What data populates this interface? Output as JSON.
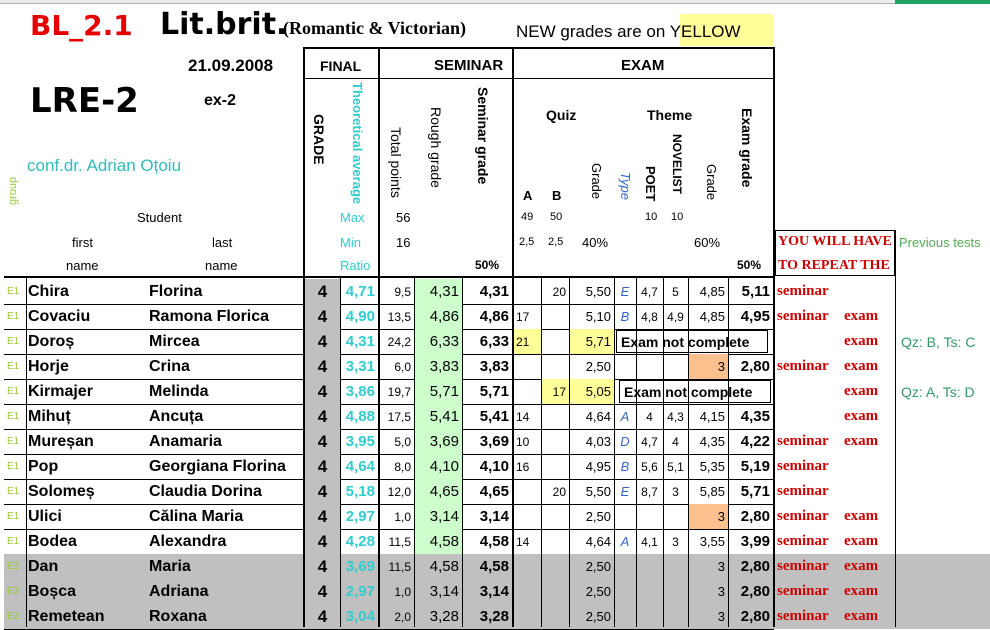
{
  "colors": {
    "teal": "#33cccc",
    "yellow": "#ffff99",
    "green": "#ccffcc",
    "orange": "#fbc08d",
    "gray": "#c0c0c0",
    "red": "#cc0000",
    "blue": "#3366cc",
    "olive": "#99cc33"
  },
  "header": {
    "code": "BL_2.1",
    "course": "Lit.brit.",
    "period": "(Romantic & Victorian)",
    "notice": "NEW grades are on YELLOW",
    "date": "21.09.2008",
    "group_code": "LRE-2",
    "ex": "ex-2",
    "group_label": "group",
    "teacher": "conf.dr. Adrian Oțoiu"
  },
  "labels": {
    "final": "FINAL",
    "seminar": "SEMINAR",
    "exam": "EXAM",
    "grade": "GRADE",
    "theoretical_average": "Theoretical average",
    "total_points": "Total points",
    "rough_grade": "Rough grade",
    "seminar_grade": "Seminar grade",
    "quiz": "Quiz",
    "theme": "Theme",
    "exam_grade": "Exam grade",
    "a": "A",
    "b": "B",
    "quiz_grade": "Grade",
    "type": "Type",
    "poet": "POET",
    "novelist": "NOVELIST",
    "theme_grade": "Grade",
    "student": "Student",
    "first": "first",
    "last": "last",
    "name1": "name",
    "name2": "name",
    "max": "Max",
    "min": "Min",
    "ratio": "Ratio",
    "max_total": "56",
    "min_total": "16",
    "max_a": "49",
    "max_b": "50",
    "min_a": "2,5",
    "min_b": "2,5",
    "quiz_pct": "40%",
    "max_poet": "10",
    "max_novelist": "10",
    "theme_pct": "60%",
    "seminar_pct": "50%",
    "exam_pct": "50%",
    "warning1": "YOU WILL HAVE",
    "warning2": "TO REPEAT THE",
    "previous": "Previous tests"
  },
  "rows": [
    {
      "g": "E1",
      "first": "Chira",
      "last": "Florina",
      "grade": "4",
      "theo": "4,71",
      "total": "9,5",
      "rough": "4,31",
      "sem": "4,31",
      "a": "",
      "b": "20",
      "qg": "5,50",
      "type": "E",
      "poet": "4,7",
      "nov": "5",
      "tg": "4,85",
      "eg": "5,11",
      "rep1": "seminar",
      "rep2": "",
      "prev": "",
      "note": ""
    },
    {
      "g": "E1",
      "first": "Covaciu",
      "last": "Ramona Florica",
      "grade": "4",
      "theo": "4,90",
      "total": "13,5",
      "rough": "4,86",
      "sem": "4,86",
      "a": "17",
      "b": "",
      "qg": "5,10",
      "type": "B",
      "poet": "4,8",
      "nov": "4,9",
      "tg": "4,85",
      "eg": "4,95",
      "rep1": "seminar",
      "rep2": "exam",
      "prev": "",
      "note": ""
    },
    {
      "g": "E1",
      "first": "Doroș",
      "last": "Mircea",
      "grade": "4",
      "theo": "4,31",
      "total": "24,2",
      "rough": "6,33",
      "sem": "6,33",
      "a": "21",
      "b": "",
      "qg": "5,71",
      "type": "",
      "poet": "",
      "nov": "",
      "tg": "",
      "eg": "",
      "rep1": "",
      "rep2": "exam",
      "prev": "Qz: B, Ts: C",
      "note": "Exam not complete"
    },
    {
      "g": "E1",
      "first": "Horje",
      "last": "Crina",
      "grade": "4",
      "theo": "3,31",
      "total": "6,0",
      "rough": "3,83",
      "sem": "3,83",
      "a": "",
      "b": "",
      "qg": "2,50",
      "type": "",
      "poet": "",
      "nov": "",
      "tg": "3",
      "eg": "2,80",
      "rep1": "seminar",
      "rep2": "exam",
      "prev": "",
      "note": ""
    },
    {
      "g": "E1",
      "first": "Kirmajer",
      "last": "Melinda",
      "grade": "4",
      "theo": "3,86",
      "total": "19,7",
      "rough": "5,71",
      "sem": "5,71",
      "a": "",
      "b": "17",
      "qg": "5,05",
      "type": "",
      "poet": "",
      "nov": "",
      "tg": "",
      "eg": "",
      "rep1": "",
      "rep2": "exam",
      "prev": "Qz: A, Ts: D",
      "note": "Exam not complete"
    },
    {
      "g": "E1",
      "first": "Mihuț",
      "last": "Ancuța",
      "grade": "4",
      "theo": "4,88",
      "total": "17,5",
      "rough": "5,41",
      "sem": "5,41",
      "a": "14",
      "b": "",
      "qg": "4,64",
      "type": "A",
      "poet": "4",
      "nov": "4,3",
      "tg": "4,15",
      "eg": "4,35",
      "rep1": "",
      "rep2": "exam",
      "prev": "",
      "note": ""
    },
    {
      "g": "E1",
      "first": "Mureșan",
      "last": "Anamaria",
      "grade": "4",
      "theo": "3,95",
      "total": "5,0",
      "rough": "3,69",
      "sem": "3,69",
      "a": "10",
      "b": "",
      "qg": "4,03",
      "type": "D",
      "poet": "4,7",
      "nov": "4",
      "tg": "4,35",
      "eg": "4,22",
      "rep1": "seminar",
      "rep2": "exam",
      "prev": "",
      "note": ""
    },
    {
      "g": "E1",
      "first": "Pop",
      "last": "Georgiana Florina",
      "grade": "4",
      "theo": "4,64",
      "total": "8,0",
      "rough": "4,10",
      "sem": "4,10",
      "a": "16",
      "b": "",
      "qg": "4,95",
      "type": "B",
      "poet": "5,6",
      "nov": "5,1",
      "tg": "5,35",
      "eg": "5,19",
      "rep1": "seminar",
      "rep2": "",
      "prev": "",
      "note": ""
    },
    {
      "g": "E1",
      "first": "Solomeș",
      "last": "Claudia Dorina",
      "grade": "4",
      "theo": "5,18",
      "total": "12,0",
      "rough": "4,65",
      "sem": "4,65",
      "a": "",
      "b": "20",
      "qg": "5,50",
      "type": "E",
      "poet": "8,7",
      "nov": "3",
      "tg": "5,85",
      "eg": "5,71",
      "rep1": "seminar",
      "rep2": "",
      "prev": "",
      "note": ""
    },
    {
      "g": "E1",
      "first": "Ulici",
      "last": "Călina Maria",
      "grade": "4",
      "theo": "2,97",
      "total": "1,0",
      "rough": "3,14",
      "sem": "3,14",
      "a": "",
      "b": "",
      "qg": "2,50",
      "type": "",
      "poet": "",
      "nov": "",
      "tg": "3",
      "eg": "2,80",
      "rep1": "seminar",
      "rep2": "exam",
      "prev": "",
      "note": ""
    },
    {
      "g": "E1",
      "first": "Bodea",
      "last": "Alexandra",
      "grade": "4",
      "theo": "4,28",
      "total": "11,5",
      "rough": "4,58",
      "sem": "4,58",
      "a": "14",
      "b": "",
      "qg": "4,64",
      "type": "A",
      "poet": "4,1",
      "nov": "3",
      "tg": "3,55",
      "eg": "3,99",
      "rep1": "seminar",
      "rep2": "exam",
      "prev": "",
      "note": ""
    },
    {
      "g": "E2",
      "first": "Dan",
      "last": "Maria",
      "grade": "4",
      "theo": "3,69",
      "total": "11,5",
      "rough": "4,58",
      "sem": "4,58",
      "a": "",
      "b": "",
      "qg": "2,50",
      "type": "",
      "poet": "",
      "nov": "",
      "tg": "3",
      "eg": "2,80",
      "rep1": "seminar",
      "rep2": "exam",
      "prev": "",
      "note": ""
    },
    {
      "g": "E2",
      "first": "Boșca",
      "last": "Adriana",
      "grade": "4",
      "theo": "2,97",
      "total": "1,0",
      "rough": "3,14",
      "sem": "3,14",
      "a": "",
      "b": "",
      "qg": "2,50",
      "type": "",
      "poet": "",
      "nov": "",
      "tg": "3",
      "eg": "2,80",
      "rep1": "seminar",
      "rep2": "exam",
      "prev": "",
      "note": ""
    },
    {
      "g": "E2",
      "first": "Remetean",
      "last": "Roxana",
      "grade": "4",
      "theo": "3,04",
      "total": "2,0",
      "rough": "3,28",
      "sem": "3,28",
      "a": "",
      "b": "",
      "qg": "2,50",
      "type": "",
      "poet": "",
      "nov": "",
      "tg": "3",
      "eg": "2,80",
      "rep1": "seminar",
      "rep2": "exam",
      "prev": "",
      "note": ""
    }
  ]
}
